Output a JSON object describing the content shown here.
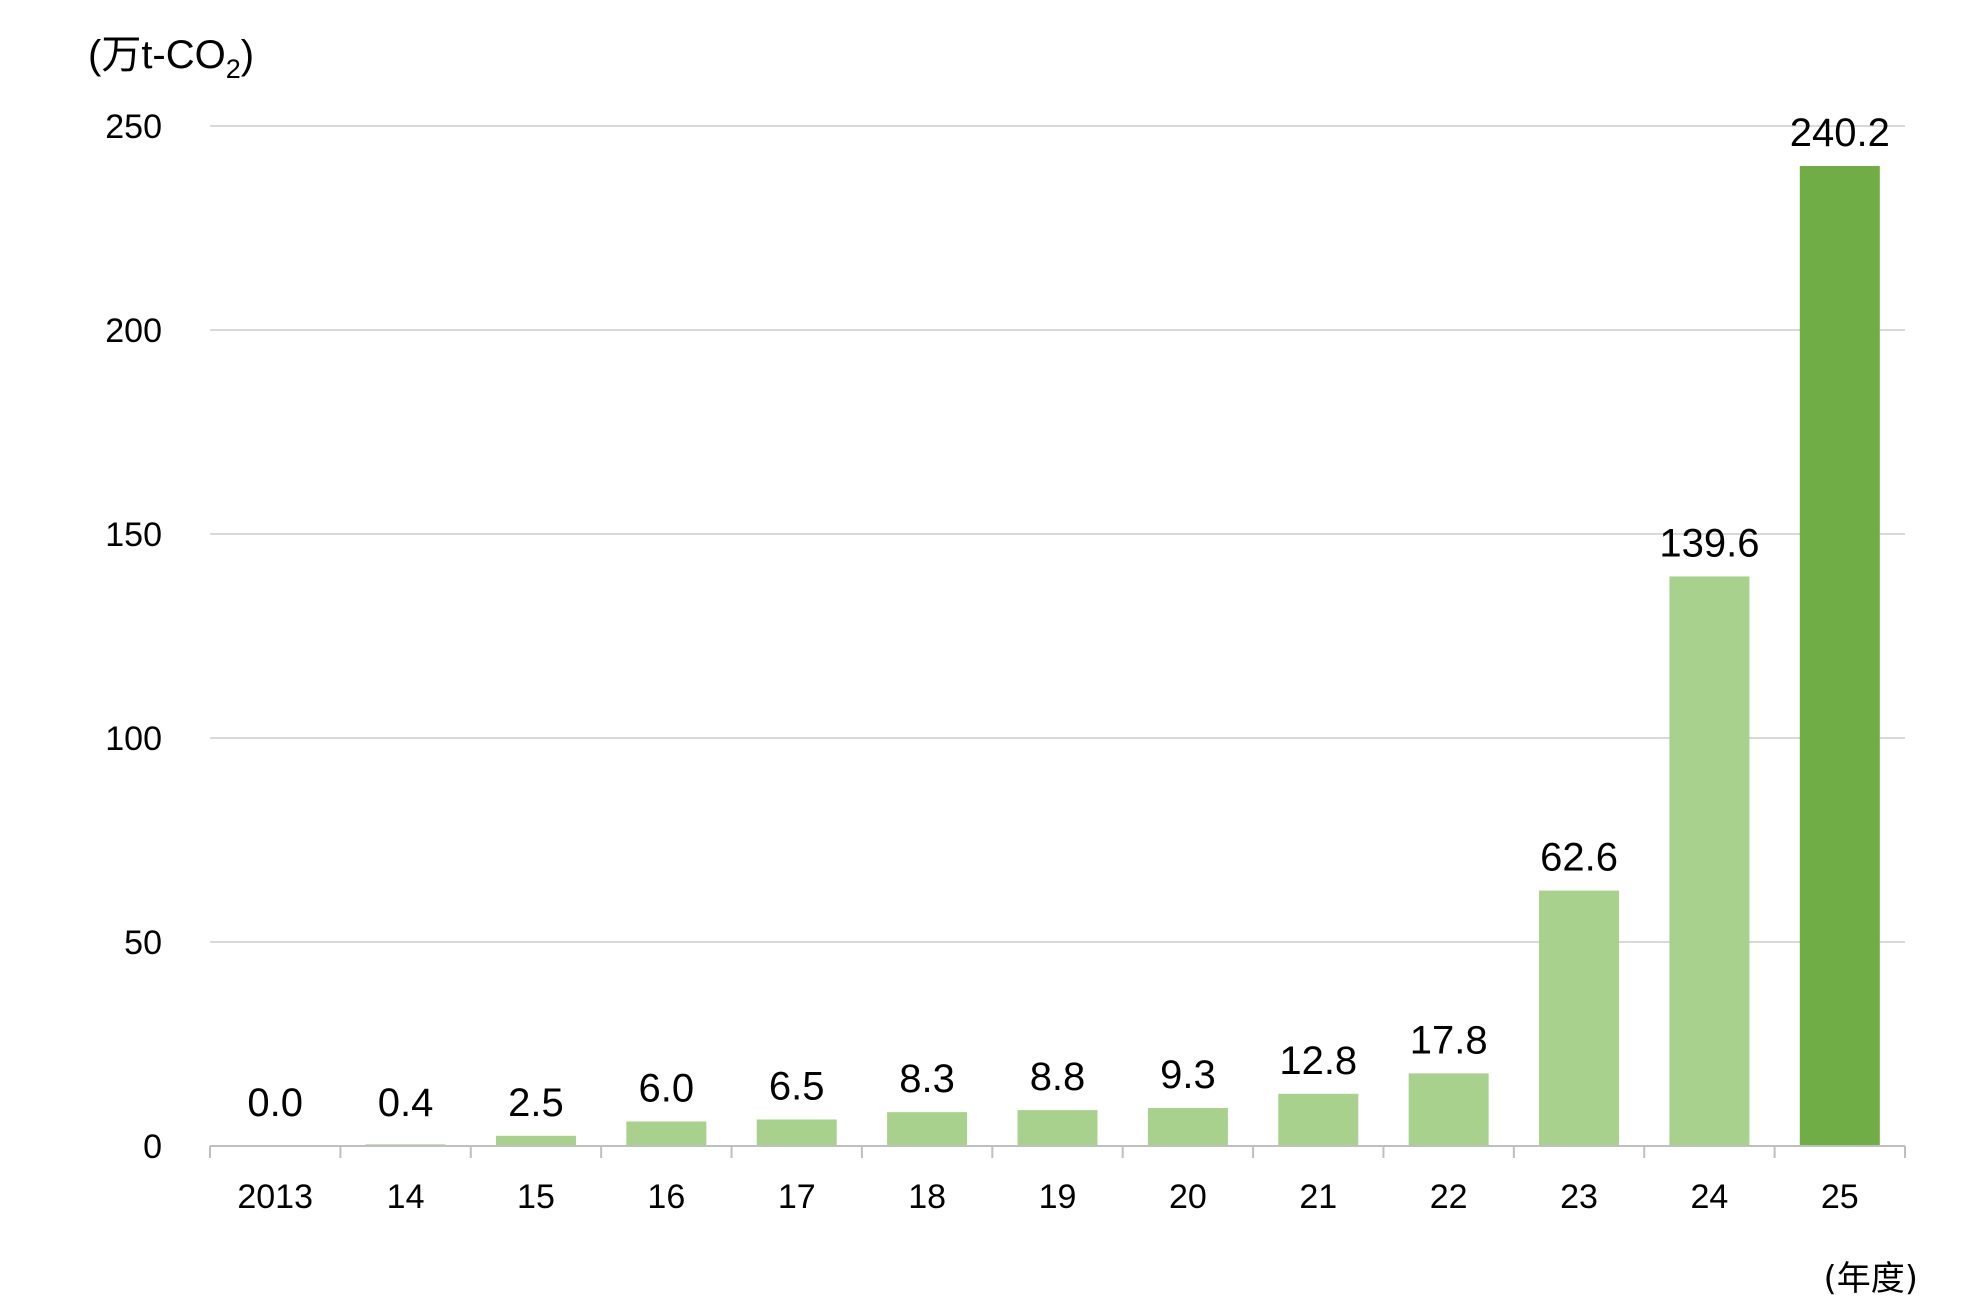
{
  "chart_data": {
    "type": "bar",
    "title": "",
    "ylabel": {
      "prefix": "(万t-CO",
      "subscript": "2",
      "suffix": ")"
    },
    "xlabel": "(年度)",
    "categories": [
      "2013",
      "14",
      "15",
      "16",
      "17",
      "18",
      "19",
      "20",
      "21",
      "22",
      "23",
      "24",
      "25"
    ],
    "values": [
      0.0,
      0.4,
      2.5,
      6.0,
      6.5,
      8.3,
      8.8,
      9.3,
      12.8,
      17.8,
      62.6,
      139.6,
      240.2
    ],
    "value_labels": [
      "0.0",
      "0.4",
      "2.5",
      "6.0",
      "6.5",
      "8.3",
      "8.8",
      "9.3",
      "12.8",
      "17.8",
      "62.6",
      "139.6",
      "240.2"
    ],
    "ylim": [
      0,
      250
    ],
    "yticks": [
      0,
      50,
      100,
      150,
      200,
      250
    ],
    "grid": true,
    "colors": {
      "bar": "#a9d18e",
      "highlight_bar": "#70ad47",
      "grid": "#d9d9d9",
      "axis": "#bfbfbf"
    },
    "highlight_index": 12
  }
}
